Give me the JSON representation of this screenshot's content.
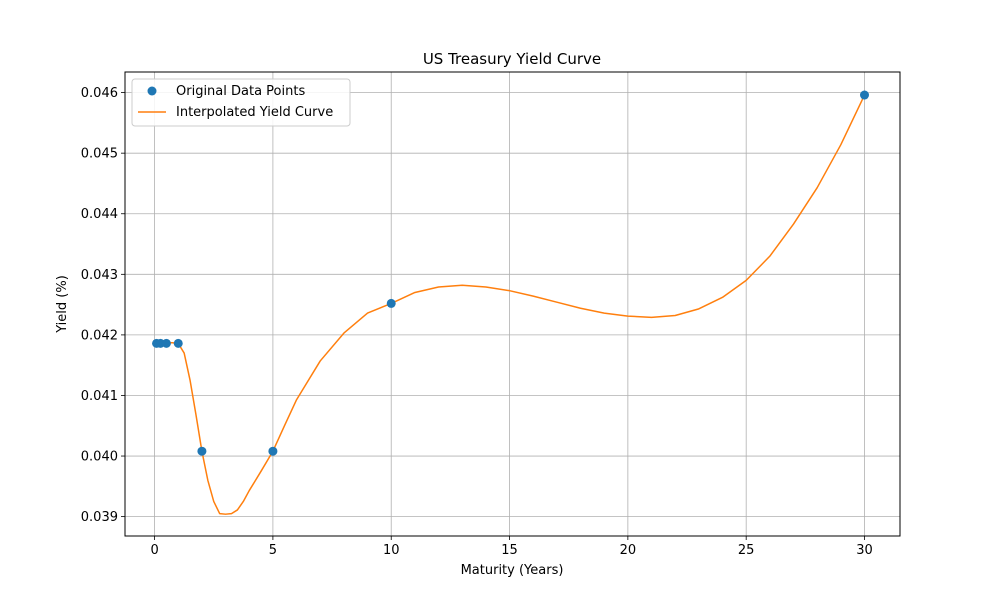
{
  "chart_data": {
    "type": "line",
    "title": "US Treasury Yield Curve",
    "xlabel": "Maturity (Years)",
    "ylabel": "Yield (%)",
    "xlim": [
      -1.25,
      31.5
    ],
    "ylim": [
      0.03868,
      0.04634
    ],
    "xticks": [
      0,
      5,
      10,
      15,
      20,
      25,
      30
    ],
    "xtick_labels": [
      "0",
      "5",
      "10",
      "15",
      "20",
      "25",
      "30"
    ],
    "yticks": [
      0.039,
      0.04,
      0.041,
      0.042,
      0.043,
      0.044,
      0.045,
      0.046
    ],
    "ytick_labels": [
      "0.039",
      "0.040",
      "0.041",
      "0.042",
      "0.043",
      "0.044",
      "0.045",
      "0.046"
    ],
    "grid": true,
    "legend_position": "upper-left",
    "colors": {
      "points": "#1f77b4",
      "curve": "#ff7f0e",
      "grid": "#b0b0b0"
    },
    "series": [
      {
        "name": "Original Data Points",
        "kind": "scatter",
        "x": [
          0.0833,
          0.25,
          0.5,
          1,
          2,
          5,
          10,
          30
        ],
        "y": [
          0.04186,
          0.04186,
          0.04186,
          0.04186,
          0.04008,
          0.04008,
          0.04252,
          0.04596
        ]
      },
      {
        "name": "Interpolated Yield Curve",
        "kind": "line",
        "x": [
          0.0833,
          0.25,
          0.5,
          0.75,
          1,
          1.25,
          1.5,
          1.75,
          2,
          2.25,
          2.5,
          2.75,
          3,
          3.25,
          3.5,
          3.75,
          4,
          4.5,
          5,
          5.5,
          6,
          7,
          8,
          9,
          10,
          11,
          12,
          13,
          14,
          15,
          16,
          17,
          18,
          19,
          20,
          21,
          22,
          23,
          24,
          25,
          26,
          27,
          28,
          29,
          30
        ],
        "y": [
          0.04186,
          0.04186,
          0.04187,
          0.04187,
          0.04186,
          0.0417,
          0.04125,
          0.04068,
          0.04008,
          0.0396,
          0.03925,
          0.03905,
          0.03904,
          0.03905,
          0.03911,
          0.03925,
          0.03943,
          0.03975,
          0.04008,
          0.04051,
          0.04093,
          0.04157,
          0.04203,
          0.04236,
          0.04252,
          0.0427,
          0.04279,
          0.04282,
          0.04279,
          0.04273,
          0.04264,
          0.04254,
          0.04244,
          0.04236,
          0.04231,
          0.04229,
          0.04232,
          0.04243,
          0.04262,
          0.0429,
          0.0433,
          0.04383,
          0.04443,
          0.04514,
          0.04596
        ]
      }
    ]
  }
}
